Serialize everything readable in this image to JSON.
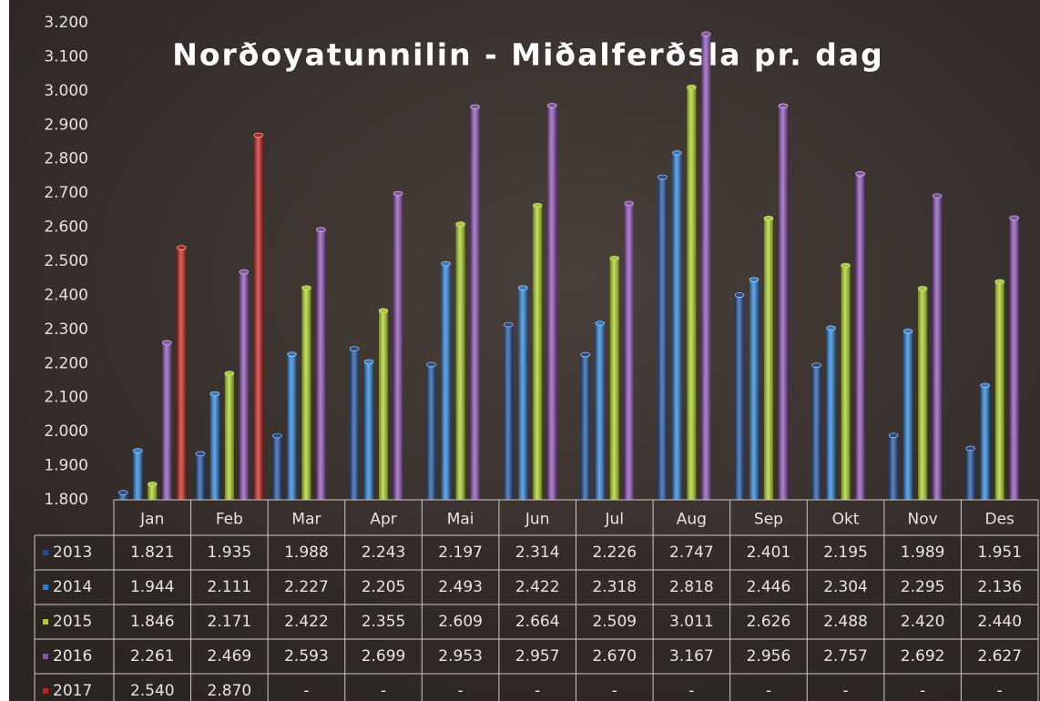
{
  "chart_data": {
    "type": "bar",
    "title": "Norðoyatunnilin - Miðalferðsla pr. dag",
    "categories": [
      "Jan",
      "Feb",
      "Mar",
      "Apr",
      "Mai",
      "Jun",
      "Jul",
      "Aug",
      "Sep",
      "Okt",
      "Nov",
      "Des"
    ],
    "series": [
      {
        "name": "2013",
        "color": "#1d4f9c",
        "values": [
          1821,
          1935,
          1988,
          2243,
          2197,
          2314,
          2226,
          2747,
          2401,
          2195,
          1989,
          1951
        ],
        "value_labels": [
          "1.821",
          "1.935",
          "1.988",
          "2.243",
          "2.197",
          "2.314",
          "2.226",
          "2.747",
          "2.401",
          "2.195",
          "1.989",
          "1.951"
        ]
      },
      {
        "name": "2014",
        "color": "#2a7fd6",
        "values": [
          1944,
          2111,
          2227,
          2205,
          2493,
          2422,
          2318,
          2818,
          2446,
          2304,
          2295,
          2136
        ],
        "value_labels": [
          "1.944",
          "2.111",
          "2.227",
          "2.205",
          "2.493",
          "2.422",
          "2.318",
          "2.818",
          "2.446",
          "2.304",
          "2.295",
          "2.136"
        ]
      },
      {
        "name": "2015",
        "color": "#a9d021",
        "values": [
          1846,
          2171,
          2422,
          2355,
          2609,
          2664,
          2509,
          3011,
          2626,
          2488,
          2420,
          2440
        ],
        "value_labels": [
          "1.846",
          "2.171",
          "2.422",
          "2.355",
          "2.609",
          "2.664",
          "2.509",
          "3.011",
          "2.626",
          "2.488",
          "2.420",
          "2.440"
        ]
      },
      {
        "name": "2016",
        "color": "#8b4fb3",
        "values": [
          2261,
          2469,
          2593,
          2699,
          2953,
          2957,
          2670,
          3167,
          2956,
          2757,
          2692,
          2627
        ],
        "value_labels": [
          "2.261",
          "2.469",
          "2.593",
          "2.699",
          "2.953",
          "2.957",
          "2.670",
          "3.167",
          "2.956",
          "2.757",
          "2.692",
          "2.627"
        ]
      },
      {
        "name": "2017",
        "color": "#c4211b",
        "values": [
          2540,
          2870,
          null,
          null,
          null,
          null,
          null,
          null,
          null,
          null,
          null,
          null
        ],
        "value_labels": [
          "2.540",
          "2.870",
          "-",
          "-",
          "-",
          "-",
          "-",
          "-",
          "-",
          "-",
          "-",
          "-"
        ]
      }
    ],
    "ylim": [
      1800,
      3200
    ],
    "yticks": [
      {
        "value": 1800,
        "label": "1.800"
      },
      {
        "value": 1900,
        "label": "1.900"
      },
      {
        "value": 2000,
        "label": "2.000"
      },
      {
        "value": 2100,
        "label": "2.100"
      },
      {
        "value": 2200,
        "label": "2.200"
      },
      {
        "value": 2300,
        "label": "2.300"
      },
      {
        "value": 2400,
        "label": "2.400"
      },
      {
        "value": 2500,
        "label": "2.500"
      },
      {
        "value": 2600,
        "label": "2.600"
      },
      {
        "value": 2700,
        "label": "2.700"
      },
      {
        "value": 2800,
        "label": "2.800"
      },
      {
        "value": 2900,
        "label": "2.900"
      },
      {
        "value": 3000,
        "label": "3.000"
      },
      {
        "value": 3100,
        "label": "3.100"
      },
      {
        "value": 3200,
        "label": "3.200"
      }
    ],
    "grid": false
  }
}
